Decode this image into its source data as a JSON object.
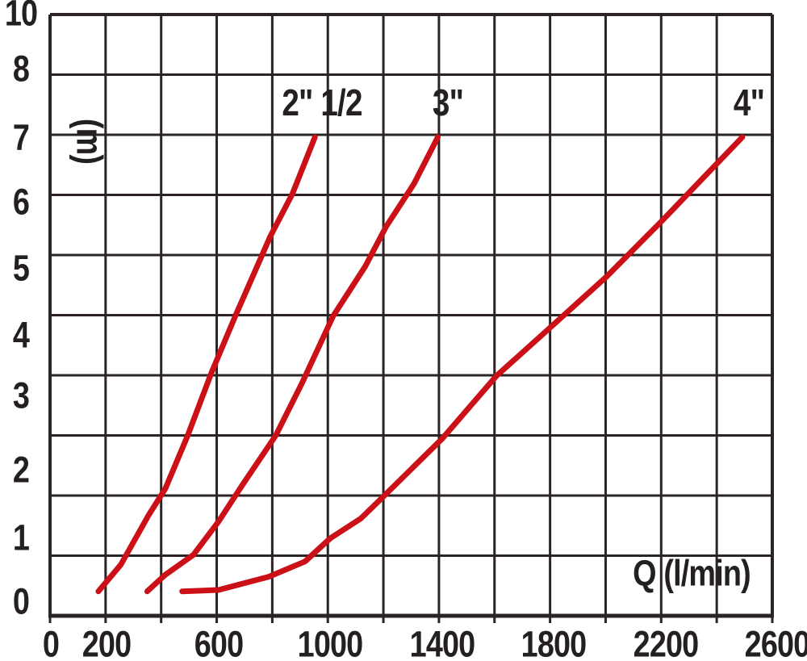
{
  "page": {
    "background": "#ffffff"
  },
  "chart_data": {
    "type": "line",
    "title": "",
    "xlabel": "Q (l/min)",
    "ylabel": "(m)",
    "xlim": [
      0,
      2600
    ],
    "ylim": [
      0,
      10
    ],
    "grid": "on",
    "legend_position": "labels-above-curve-tops",
    "x_tick_values": [
      0,
      200,
      600,
      1000,
      1400,
      1800,
      2200,
      2600
    ],
    "x_tick_labels": [
      "0",
      "200",
      "600",
      "1000",
      "1400",
      "1800",
      "2200",
      "2600"
    ],
    "x_grid_step": 200,
    "y_grid_step": 1,
    "y_tick_labels": [
      "10",
      "8",
      "7",
      "6",
      "5",
      "4",
      "3",
      "2",
      "1",
      "0"
    ],
    "colors": {
      "curve": "#cb1117",
      "grid": "#2a2425",
      "text": "#242021"
    },
    "series": [
      {
        "name": "2\" 1/2",
        "units": {
          "x": "l/min",
          "y": "m"
        },
        "points": [
          [
            170,
            0.15
          ],
          [
            250,
            0.55
          ],
          [
            350,
            1.3
          ],
          [
            410,
            1.7
          ],
          [
            490,
            2.5
          ],
          [
            575,
            3.45
          ],
          [
            660,
            4.3
          ],
          [
            785,
            5.5
          ],
          [
            865,
            6.15
          ],
          [
            945,
            7.0
          ]
        ]
      },
      {
        "name": "3\"",
        "units": {
          "x": "l/min",
          "y": "m"
        },
        "points": [
          [
            345,
            0.15
          ],
          [
            410,
            0.4
          ],
          [
            510,
            0.7
          ],
          [
            600,
            1.2
          ],
          [
            685,
            1.75
          ],
          [
            805,
            2.5
          ],
          [
            900,
            3.3
          ],
          [
            1010,
            4.3
          ],
          [
            1125,
            5.05
          ],
          [
            1200,
            5.65
          ],
          [
            1300,
            6.3
          ],
          [
            1385,
            7.0
          ]
        ]
      },
      {
        "name": "4\"",
        "units": {
          "x": "l/min",
          "y": "m"
        },
        "points": [
          [
            470,
            0.15
          ],
          [
            600,
            0.17
          ],
          [
            780,
            0.37
          ],
          [
            910,
            0.6
          ],
          [
            1000,
            0.95
          ],
          [
            1110,
            1.25
          ],
          [
            1195,
            1.6
          ],
          [
            1400,
            2.45
          ],
          [
            1595,
            3.4
          ],
          [
            1780,
            4.1
          ],
          [
            1990,
            4.9
          ],
          [
            2190,
            5.75
          ],
          [
            2395,
            6.65
          ],
          [
            2475,
            7.0
          ]
        ]
      }
    ]
  }
}
